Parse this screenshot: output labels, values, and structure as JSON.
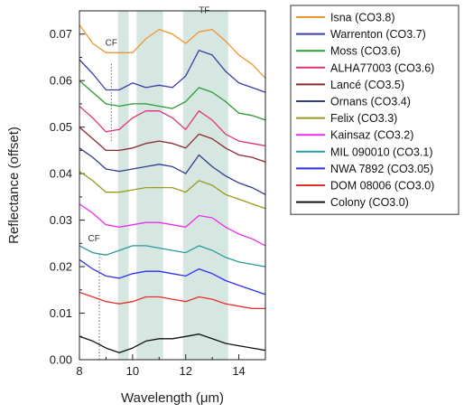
{
  "chart_data": {
    "type": "line",
    "xlabel": "Wavelength (μm)",
    "ylabel": "Reflectance (offset)",
    "xlim": [
      8,
      15
    ],
    "ylim": [
      0,
      0.075
    ],
    "x_ticks": [
      "8",
      "10",
      "12",
      "14"
    ],
    "y_ticks": [
      "0.00",
      "0.01",
      "0.02",
      "0.03",
      "0.04",
      "0.05",
      "0.06",
      "0.07"
    ],
    "bands": [
      {
        "x0": 9.45,
        "x1": 9.85
      },
      {
        "x0": 10.15,
        "x1": 11.15
      },
      {
        "x0": 11.9,
        "x1": 13.6
      }
    ],
    "annotations": [
      {
        "text": "CF",
        "x": 9.2,
        "y": 0.0675
      },
      {
        "text": "CF",
        "x": 8.55,
        "y": 0.0255
      },
      {
        "text": "TF",
        "x": 12.7,
        "y": 0.0745
      }
    ],
    "markers": [
      {
        "x": 9.2,
        "y0": 0.047,
        "y1": 0.064
      },
      {
        "x": 8.75,
        "y0": 0.0,
        "y1": 0.023
      }
    ],
    "series": [
      {
        "name": "Isna (CO3.8)",
        "color": "#f0962e",
        "x": [
          8,
          8.5,
          9,
          9.5,
          10,
          10.5,
          11,
          11.5,
          12,
          12.5,
          13,
          13.5,
          14,
          14.5,
          15
        ],
        "values": [
          0.072,
          0.068,
          0.066,
          0.066,
          0.066,
          0.069,
          0.071,
          0.07,
          0.068,
          0.0705,
          0.071,
          0.0685,
          0.0655,
          0.0635,
          0.0605
        ]
      },
      {
        "name": "Warrenton (CO3.7)",
        "color": "#3a3fa8",
        "x": [
          8,
          8.5,
          9,
          9.5,
          10,
          10.5,
          11,
          11.5,
          12,
          12.5,
          13,
          13.5,
          14,
          14.5,
          15
        ],
        "values": [
          0.0645,
          0.0615,
          0.058,
          0.058,
          0.0595,
          0.0585,
          0.059,
          0.0585,
          0.061,
          0.0665,
          0.0655,
          0.062,
          0.0595,
          0.0585,
          0.0575
        ]
      },
      {
        "name": "Moss (CO3.6)",
        "color": "#2a9a32",
        "x": [
          8,
          8.5,
          9,
          9.5,
          10,
          10.5,
          11,
          11.5,
          12,
          12.5,
          13,
          13.5,
          14,
          14.5,
          15
        ],
        "values": [
          0.06,
          0.0575,
          0.055,
          0.0545,
          0.055,
          0.055,
          0.0545,
          0.054,
          0.0555,
          0.0585,
          0.0575,
          0.0555,
          0.053,
          0.0525,
          0.0515
        ]
      },
      {
        "name": "ALHA77003 (CO3.6)",
        "color": "#e0337a",
        "x": [
          8,
          8.5,
          9,
          9.5,
          10,
          10.5,
          11,
          11.5,
          12,
          12.5,
          13,
          13.5,
          14,
          14.5,
          15
        ],
        "values": [
          0.0545,
          0.052,
          0.049,
          0.0495,
          0.052,
          0.0535,
          0.0535,
          0.052,
          0.0495,
          0.0535,
          0.0515,
          0.0485,
          0.047,
          0.0465,
          0.046
        ]
      },
      {
        "name": "Lancé (CO3.5)",
        "color": "#8b2a2e",
        "x": [
          8,
          8.5,
          9,
          9.5,
          10,
          10.5,
          11,
          11.5,
          12,
          12.5,
          13,
          13.5,
          14,
          14.5,
          15
        ],
        "values": [
          0.05,
          0.0475,
          0.045,
          0.045,
          0.0455,
          0.0465,
          0.047,
          0.0465,
          0.0455,
          0.0485,
          0.0475,
          0.0455,
          0.044,
          0.0435,
          0.0425
        ]
      },
      {
        "name": "Ornans (CO3.4)",
        "color": "#323c8e",
        "x": [
          8,
          8.5,
          9,
          9.5,
          10,
          10.5,
          11,
          11.5,
          12,
          12.5,
          13,
          13.5,
          14,
          14.5,
          15
        ],
        "values": [
          0.0455,
          0.0435,
          0.041,
          0.0405,
          0.041,
          0.0415,
          0.042,
          0.0415,
          0.04,
          0.044,
          0.0415,
          0.0395,
          0.038,
          0.037,
          0.0355
        ]
      },
      {
        "name": "Felix (CO3.3)",
        "color": "#9a9a20",
        "x": [
          8,
          8.5,
          9,
          9.5,
          10,
          10.5,
          11,
          11.5,
          12,
          12.5,
          13,
          13.5,
          14,
          14.5,
          15
        ],
        "values": [
          0.0405,
          0.0385,
          0.036,
          0.036,
          0.0365,
          0.037,
          0.037,
          0.037,
          0.036,
          0.0385,
          0.0375,
          0.0355,
          0.0345,
          0.0335,
          0.0325
        ]
      },
      {
        "name": "Kainsaz (CO3.2)",
        "color": "#ee2cee",
        "x": [
          8,
          8.5,
          9,
          9.5,
          10,
          10.5,
          11,
          11.5,
          12,
          12.5,
          13,
          13.5,
          14,
          14.5,
          15
        ],
        "values": [
          0.0335,
          0.0315,
          0.029,
          0.0285,
          0.029,
          0.0295,
          0.0295,
          0.029,
          0.0285,
          0.031,
          0.0305,
          0.0285,
          0.027,
          0.026,
          0.0245
        ]
      },
      {
        "name": "MIL 090010 (CO3.1)",
        "color": "#2a9a9a",
        "x": [
          8,
          8.5,
          9,
          9.5,
          10,
          10.5,
          11,
          11.5,
          12,
          12.5,
          13,
          13.5,
          14,
          14.5,
          15
        ],
        "values": [
          0.0245,
          0.023,
          0.0225,
          0.0235,
          0.0245,
          0.0245,
          0.024,
          0.0235,
          0.023,
          0.0245,
          0.0235,
          0.022,
          0.021,
          0.0205,
          0.02
        ]
      },
      {
        "name": "NWA 7892 (CO3.05)",
        "color": "#2f2ff0",
        "x": [
          8,
          8.5,
          9,
          9.5,
          10,
          10.5,
          11,
          11.5,
          12,
          12.5,
          13,
          13.5,
          14,
          14.5,
          15
        ],
        "values": [
          0.0215,
          0.0195,
          0.018,
          0.0175,
          0.0185,
          0.019,
          0.019,
          0.0185,
          0.018,
          0.0195,
          0.0185,
          0.017,
          0.016,
          0.015,
          0.014
        ]
      },
      {
        "name": "DOM 08006 (CO3.0)",
        "color": "#e8302a",
        "x": [
          8,
          8.5,
          9,
          9.5,
          10,
          10.5,
          11,
          11.5,
          12,
          12.5,
          13,
          13.5,
          14,
          14.5,
          15
        ],
        "values": [
          0.0145,
          0.0135,
          0.0125,
          0.012,
          0.0125,
          0.0135,
          0.0135,
          0.013,
          0.0125,
          0.0135,
          0.013,
          0.012,
          0.0115,
          0.011,
          0.011
        ]
      },
      {
        "name": "Colony (CO3.0)",
        "color": "#111111",
        "x": [
          8,
          8.5,
          9,
          9.5,
          10,
          10.5,
          11,
          11.5,
          12,
          12.5,
          13,
          13.5,
          14,
          14.5,
          15
        ],
        "values": [
          0.005,
          0.004,
          0.0025,
          0.0015,
          0.0025,
          0.004,
          0.0045,
          0.0045,
          0.005,
          0.0055,
          0.0045,
          0.0035,
          0.003,
          0.0025,
          0.002
        ]
      }
    ]
  }
}
